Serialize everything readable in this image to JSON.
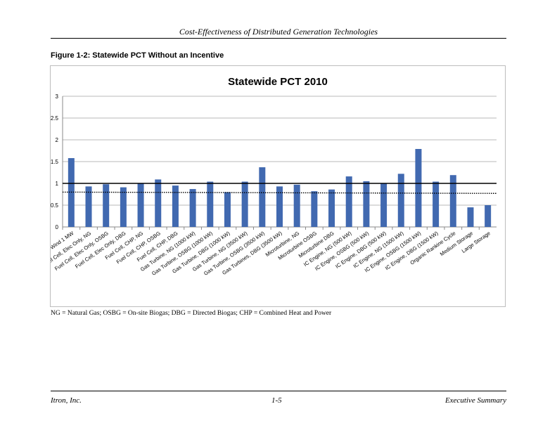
{
  "header": {
    "title": "Cost-Effectiveness of Distributed Generation Technologies"
  },
  "figure": {
    "caption": "Figure 1-2:  Statewide PCT Without an Incentive",
    "note": "NG = Natural Gas; OSBG = On-site Biogas; DBG = Directed Biogas; CHP = Combined Heat and Power"
  },
  "footer": {
    "left": "Itron, Inc.",
    "center": "1-5",
    "right": "Executive Summary"
  },
  "chart_data": {
    "type": "bar",
    "title": "Statewide PCT 2010",
    "xlabel": "",
    "ylabel": "",
    "ylim": [
      0,
      3
    ],
    "yticks": [
      "0",
      "0.5",
      "1",
      "1.5",
      "2",
      "2.5",
      "3"
    ],
    "grid": true,
    "color": "#4169b0",
    "categories": [
      "Wind 1 MW",
      "Fuel Cell, Elec Only, NG",
      "Fuel Cell, Elec Only, OSBG",
      "Fuel Cell, Elec Only, DBG",
      "Fuel Cell, CHP, NG",
      "Fuel Cell, CHP, OSBG",
      "Fuel Cell, CHP, DBG",
      "Gas Turbine, NG (1000 kW)",
      "Gas Turbine, OSBG (1000 kW)",
      "Gas Turbine, DBG (1000 kW)",
      "Gas Turbine, NG (3500 kW)",
      "Gas Turbine, OSBG (3500 kW)",
      "Gas Turbines, DBG (3500 kW)",
      "Microturbine, NG",
      "Microturbine OSBG",
      "Microturbine DBG",
      "IC Engine, NG (500 kW)",
      "IC Engine, OSBG (500 kW)",
      "IC Engine, DBG (500 kW)",
      "IC Engine, NG (1500 kW)",
      "IC Engine, OSBG (1500 kW)",
      "IC Engine, DBG (1500 kW)",
      "Organic Rankine Cycle",
      "Medium Storage",
      "Large Storage"
    ],
    "values": [
      1.58,
      0.93,
      0.98,
      0.91,
      1.0,
      1.09,
      0.95,
      0.87,
      1.04,
      0.8,
      1.04,
      1.37,
      0.93,
      0.97,
      0.82,
      0.86,
      1.16,
      1.05,
      1.0,
      1.22,
      1.79,
      1.04,
      1.19,
      0.45,
      0.5
    ],
    "reference_lines": [
      {
        "style": "solid",
        "value_start": 1.0,
        "value_end": 1.0
      },
      {
        "style": "dotted",
        "value_start": 0.8,
        "value_end": 0.77
      }
    ]
  }
}
